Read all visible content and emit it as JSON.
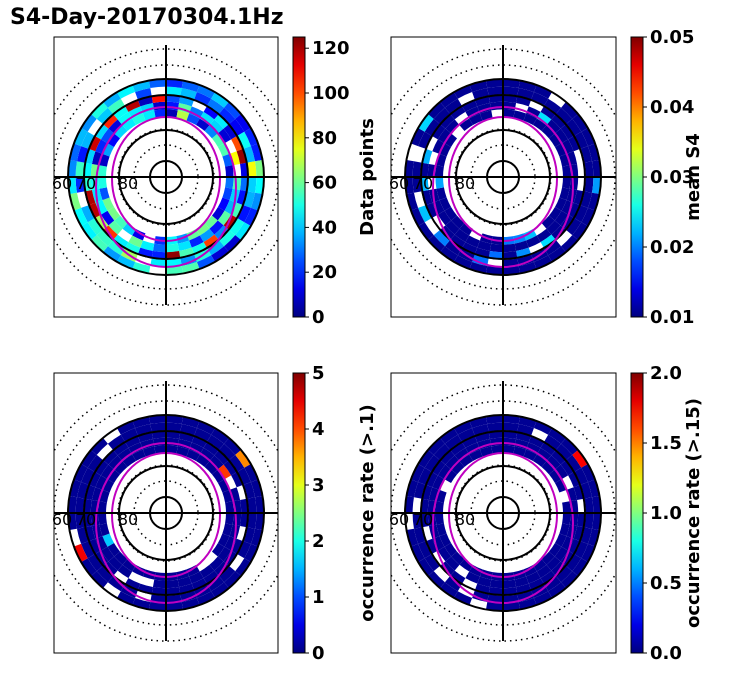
{
  "title": "S4-Day-20170304.1Hz",
  "chart_data": [
    {
      "type": "heatmap",
      "projection": "polar",
      "panel": "top-left",
      "colormap": "jet",
      "colorbar": {
        "label": "Data points",
        "range": [
          0,
          125
        ],
        "ticks": [
          "0",
          "20",
          "40",
          "60",
          "80",
          "100",
          "120"
        ],
        "tick_values": [
          0,
          20,
          40,
          60,
          80,
          100,
          120
        ]
      },
      "radial_tick_labels": [
        "60",
        "70",
        "80"
      ],
      "ring_band": "60-70 deg MLAT",
      "values_summary": "mostly 10-60 counts, peaks near 120 in outer ring"
    },
    {
      "type": "heatmap",
      "projection": "polar",
      "panel": "top-right",
      "colormap": "jet",
      "colorbar": {
        "label": "mean S4",
        "range": [
          0.01,
          0.05
        ],
        "ticks": [
          "0.01",
          "0.02",
          "0.03",
          "0.04",
          "0.05"
        ],
        "tick_values": [
          0.01,
          0.02,
          0.03,
          0.04,
          0.05
        ]
      },
      "radial_tick_labels": [
        "60",
        "70",
        "80"
      ],
      "values_summary": "nearly all ~0.01, few cells ~0.02"
    },
    {
      "type": "heatmap",
      "projection": "polar",
      "panel": "bottom-left",
      "colormap": "jet",
      "colorbar": {
        "label": "occurrence rate (>.1)",
        "range": [
          0,
          5
        ],
        "ticks": [
          "0",
          "1",
          "2",
          "3",
          "4",
          "5"
        ],
        "tick_values": [
          0,
          1,
          2,
          3,
          4,
          5
        ]
      },
      "radial_tick_labels": [
        "60",
        "70",
        "80"
      ],
      "values_summary": "mostly 0, a few cells 2-4.5 in upper-left and upper-right"
    },
    {
      "type": "heatmap",
      "projection": "polar",
      "panel": "bottom-right",
      "colormap": "jet",
      "colorbar": {
        "label": "occurrence rate (>.15)",
        "range": [
          0,
          2
        ],
        "ticks": [
          "0.0",
          "0.5",
          "1.0",
          "1.5",
          "2.0"
        ],
        "tick_values": [
          0,
          0.5,
          1,
          1.5,
          2
        ]
      },
      "radial_tick_labels": [
        "60",
        "70",
        "80"
      ],
      "values_summary": "mostly 0, few cells ~1.3-2.0 in upper-left and upper-right"
    }
  ]
}
